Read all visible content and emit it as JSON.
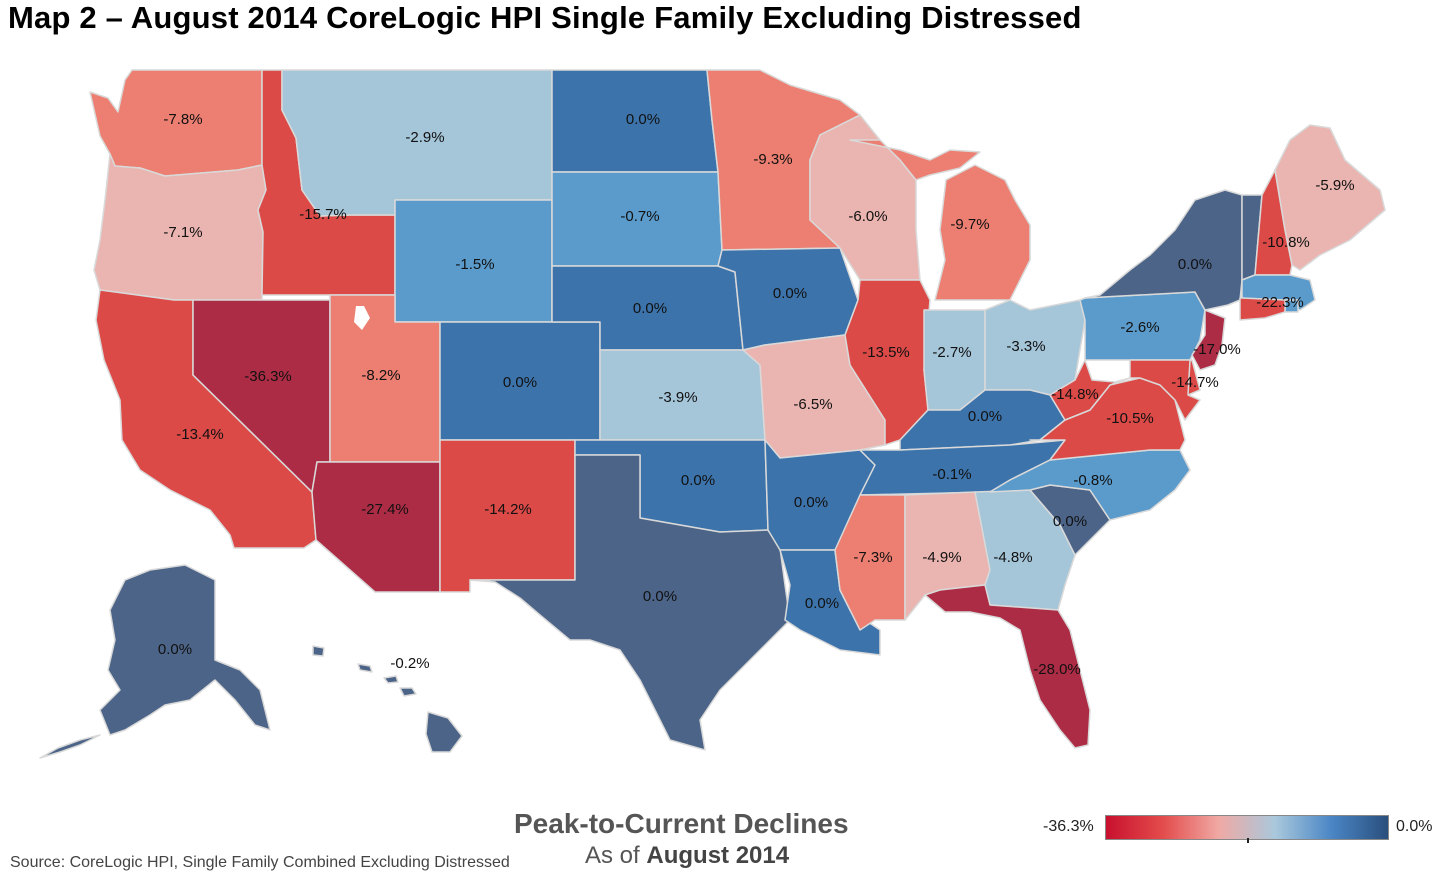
{
  "title": "Map 2 – August 2014 CoreLogic HPI Single Family Excluding Distressed",
  "legend": {
    "title": "Peak-to-Current Declines",
    "subtitle_prefix": "As of",
    "subtitle_date": "August 2014",
    "min_label": "-36.3%",
    "max_label": "0.0%",
    "gradient": [
      "#c8102e",
      "#e34b4b",
      "#f0a9a4",
      "#a9c8dc",
      "#4a86c5",
      "#2a4f7d"
    ]
  },
  "source": "Source: CoreLogic HPI, Single Family Combined Excluding Distressed",
  "colors": {
    "dark_red": "#ad2c45",
    "red": "#dc4a48",
    "salmon": "#ec7f71",
    "pink": "#eab5b1",
    "light_blue": "#a5c5d9",
    "mid_blue": "#5b9bcb",
    "blue": "#3c73ab",
    "navy": "#4c6488",
    "water": "#ffffff"
  },
  "states": [
    {
      "abbr": "WA",
      "label": "-7.8%",
      "color": "salmon"
    },
    {
      "abbr": "OR",
      "label": "-7.1%",
      "color": "pink"
    },
    {
      "abbr": "CA",
      "label": "-13.4%",
      "color": "red"
    },
    {
      "abbr": "NV",
      "label": "-36.3%",
      "color": "dark_red"
    },
    {
      "abbr": "ID",
      "label": "-15.7%",
      "color": "red"
    },
    {
      "abbr": "MT",
      "label": "-2.9%",
      "color": "light_blue"
    },
    {
      "abbr": "WY",
      "label": "-1.5%",
      "color": "mid_blue"
    },
    {
      "abbr": "UT",
      "label": "-8.2%",
      "color": "salmon"
    },
    {
      "abbr": "AZ",
      "label": "-27.4%",
      "color": "dark_red"
    },
    {
      "abbr": "CO",
      "label": "0.0%",
      "color": "blue"
    },
    {
      "abbr": "NM",
      "label": "-14.2%",
      "color": "red"
    },
    {
      "abbr": "ND",
      "label": "0.0%",
      "color": "blue"
    },
    {
      "abbr": "SD",
      "label": "-0.7%",
      "color": "mid_blue"
    },
    {
      "abbr": "NE",
      "label": "0.0%",
      "color": "blue"
    },
    {
      "abbr": "KS",
      "label": "-3.9%",
      "color": "light_blue"
    },
    {
      "abbr": "OK",
      "label": "0.0%",
      "color": "blue"
    },
    {
      "abbr": "TX",
      "label": "0.0%",
      "color": "navy"
    },
    {
      "abbr": "MN",
      "label": "-9.3%",
      "color": "salmon"
    },
    {
      "abbr": "IA",
      "label": "0.0%",
      "color": "blue"
    },
    {
      "abbr": "MO",
      "label": "-6.5%",
      "color": "pink"
    },
    {
      "abbr": "AR",
      "label": "0.0%",
      "color": "blue"
    },
    {
      "abbr": "LA",
      "label": "0.0%",
      "color": "blue"
    },
    {
      "abbr": "WI",
      "label": "-6.0%",
      "color": "pink"
    },
    {
      "abbr": "IL",
      "label": "-13.5%",
      "color": "red"
    },
    {
      "abbr": "MI",
      "label": "-9.7%",
      "color": "salmon"
    },
    {
      "abbr": "IN",
      "label": "-2.7%",
      "color": "light_blue"
    },
    {
      "abbr": "OH",
      "label": "-3.3%",
      "color": "light_blue"
    },
    {
      "abbr": "KY",
      "label": "0.0%",
      "color": "blue"
    },
    {
      "abbr": "TN",
      "label": "-0.1%",
      "color": "blue"
    },
    {
      "abbr": "MS",
      "label": "-7.3%",
      "color": "salmon"
    },
    {
      "abbr": "AL",
      "label": "-4.9%",
      "color": "pink"
    },
    {
      "abbr": "GA",
      "label": "-4.8%",
      "color": "light_blue"
    },
    {
      "abbr": "FL",
      "label": "-28.0%",
      "color": "dark_red"
    },
    {
      "abbr": "SC",
      "label": "0.0%",
      "color": "navy"
    },
    {
      "abbr": "NC",
      "label": "-0.8%",
      "color": "mid_blue"
    },
    {
      "abbr": "VA",
      "label": "-10.5%",
      "color": "red"
    },
    {
      "abbr": "WV",
      "label": "-14.8%",
      "color": "red"
    },
    {
      "abbr": "PA",
      "label": "-2.6%",
      "color": "mid_blue"
    },
    {
      "abbr": "NY",
      "label": "0.0%",
      "color": "navy"
    },
    {
      "abbr": "VT",
      "label": "",
      "color": "navy"
    },
    {
      "abbr": "NH",
      "label": "-10.8%",
      "color": "red"
    },
    {
      "abbr": "ME",
      "label": "-5.9%",
      "color": "pink"
    },
    {
      "abbr": "MA",
      "label": "",
      "color": "mid_blue"
    },
    {
      "abbr": "RI",
      "label": "",
      "color": "mid_blue"
    },
    {
      "abbr": "CT",
      "label": "-22.3%",
      "color": "red"
    },
    {
      "abbr": "NJ",
      "label": "-17.0%",
      "color": "dark_red"
    },
    {
      "abbr": "DE",
      "label": "",
      "color": "red"
    },
    {
      "abbr": "MD",
      "label": "-14.7%",
      "color": "red"
    },
    {
      "abbr": "AK",
      "label": "0.0%",
      "color": "navy"
    },
    {
      "abbr": "HI",
      "label": "-0.2%",
      "color": "navy"
    }
  ]
}
